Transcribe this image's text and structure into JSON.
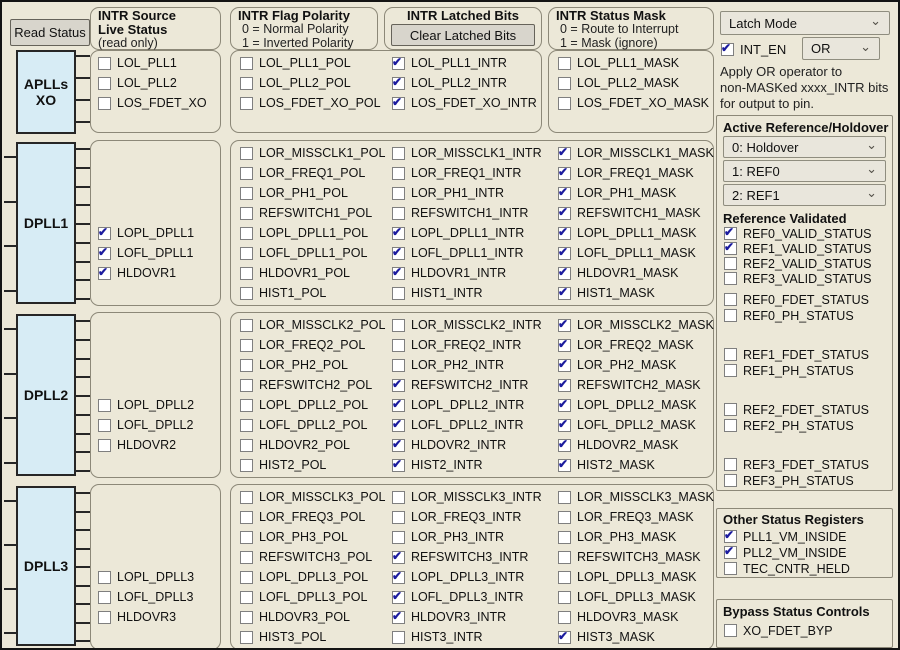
{
  "theme": {
    "background": "#ece8d8",
    "block_fill": "#d7ecf5",
    "check_color": "#1b1b9e",
    "box_border": "#8c8878",
    "button_fill": "#d8d5cc"
  },
  "read_status_button": {
    "label": "Read Status"
  },
  "headers": {
    "source": {
      "line1": "INTR Source",
      "line2": "Live Status",
      "line3": "(read only)"
    },
    "polarity": {
      "title": "INTR Flag Polarity",
      "line1": "0 = Normal Polarity",
      "line2": "1 = Inverted Polarity"
    },
    "latched": {
      "title": "INTR Latched Bits",
      "button_label": "Clear Latched Bits"
    },
    "mask": {
      "title": "INTR Status Mask",
      "line1": "0 = Route to Interrupt",
      "line2": "1 = Mask (ignore)"
    }
  },
  "bands": [
    {
      "block_label": "APLLs\nXO",
      "live": [
        {
          "label": "LOL_PLL1",
          "checked": false
        },
        {
          "label": "LOL_PLL2",
          "checked": false
        },
        {
          "label": "LOS_FDET_XO",
          "checked": false
        }
      ],
      "pol": [
        {
          "label": "LOL_PLL1_POL",
          "checked": false
        },
        {
          "label": "LOL_PLL2_POL",
          "checked": false
        },
        {
          "label": "LOS_FDET_XO_POL",
          "checked": false
        }
      ],
      "intr": [
        {
          "label": "LOL_PLL1_INTR",
          "checked": true
        },
        {
          "label": "LOL_PLL2_INTR",
          "checked": true
        },
        {
          "label": "LOS_FDET_XO_INTR",
          "checked": true
        }
      ],
      "mask": [
        {
          "label": "LOL_PLL1_MASK",
          "checked": false
        },
        {
          "label": "LOL_PLL2_MASK",
          "checked": false
        },
        {
          "label": "LOS_FDET_XO_MASK",
          "checked": false
        }
      ]
    },
    {
      "block_label": "DPLL1",
      "live": [
        {
          "label": "LOPL_DPLL1",
          "checked": true
        },
        {
          "label": "LOFL_DPLL1",
          "checked": true
        },
        {
          "label": "HLDOVR1",
          "checked": true
        }
      ],
      "pol": [
        {
          "label": "LOR_MISSCLK1_POL",
          "checked": false
        },
        {
          "label": "LOR_FREQ1_POL",
          "checked": false
        },
        {
          "label": "LOR_PH1_POL",
          "checked": false
        },
        {
          "label": "REFSWITCH1_POL",
          "checked": false
        },
        {
          "label": "LOPL_DPLL1_POL",
          "checked": false
        },
        {
          "label": "LOFL_DPLL1_POL",
          "checked": false
        },
        {
          "label": "HLDOVR1_POL",
          "checked": false
        },
        {
          "label": "HIST1_POL",
          "checked": false
        }
      ],
      "intr": [
        {
          "label": "LOR_MISSCLK1_INTR",
          "checked": false
        },
        {
          "label": "LOR_FREQ1_INTR",
          "checked": false
        },
        {
          "label": "LOR_PH1_INTR",
          "checked": false
        },
        {
          "label": "REFSWITCH1_INTR",
          "checked": false
        },
        {
          "label": "LOPL_DPLL1_INTR",
          "checked": true
        },
        {
          "label": "LOFL_DPLL1_INTR",
          "checked": true
        },
        {
          "label": "HLDOVR1_INTR",
          "checked": true
        },
        {
          "label": "HIST1_INTR",
          "checked": false
        }
      ],
      "mask": [
        {
          "label": "LOR_MISSCLK1_MASK",
          "checked": true
        },
        {
          "label": "LOR_FREQ1_MASK",
          "checked": true
        },
        {
          "label": "LOR_PH1_MASK",
          "checked": true
        },
        {
          "label": "REFSWITCH1_MASK",
          "checked": true
        },
        {
          "label": "LOPL_DPLL1_MASK",
          "checked": true
        },
        {
          "label": "LOFL_DPLL1_MASK",
          "checked": true
        },
        {
          "label": "HLDOVR1_MASK",
          "checked": true
        },
        {
          "label": "HIST1_MASK",
          "checked": true
        }
      ]
    },
    {
      "block_label": "DPLL2",
      "live": [
        {
          "label": "LOPL_DPLL2",
          "checked": false
        },
        {
          "label": "LOFL_DPLL2",
          "checked": false
        },
        {
          "label": "HLDOVR2",
          "checked": false
        }
      ],
      "pol": [
        {
          "label": "LOR_MISSCLK2_POL",
          "checked": false
        },
        {
          "label": "LOR_FREQ2_POL",
          "checked": false
        },
        {
          "label": "LOR_PH2_POL",
          "checked": false
        },
        {
          "label": "REFSWITCH2_POL",
          "checked": false
        },
        {
          "label": "LOPL_DPLL2_POL",
          "checked": false
        },
        {
          "label": "LOFL_DPLL2_POL",
          "checked": false
        },
        {
          "label": "HLDOVR2_POL",
          "checked": false
        },
        {
          "label": "HIST2_POL",
          "checked": false
        }
      ],
      "intr": [
        {
          "label": "LOR_MISSCLK2_INTR",
          "checked": false
        },
        {
          "label": "LOR_FREQ2_INTR",
          "checked": false
        },
        {
          "label": "LOR_PH2_INTR",
          "checked": false
        },
        {
          "label": "REFSWITCH2_INTR",
          "checked": true
        },
        {
          "label": "LOPL_DPLL2_INTR",
          "checked": true
        },
        {
          "label": "LOFL_DPLL2_INTR",
          "checked": true
        },
        {
          "label": "HLDOVR2_INTR",
          "checked": true
        },
        {
          "label": "HIST2_INTR",
          "checked": true
        }
      ],
      "mask": [
        {
          "label": "LOR_MISSCLK2_MASK",
          "checked": true
        },
        {
          "label": "LOR_FREQ2_MASK",
          "checked": true
        },
        {
          "label": "LOR_PH2_MASK",
          "checked": true
        },
        {
          "label": "REFSWITCH2_MASK",
          "checked": true
        },
        {
          "label": "LOPL_DPLL2_MASK",
          "checked": true
        },
        {
          "label": "LOFL_DPLL2_MASK",
          "checked": true
        },
        {
          "label": "HLDOVR2_MASK",
          "checked": true
        },
        {
          "label": "HIST2_MASK",
          "checked": true
        }
      ]
    },
    {
      "block_label": "DPLL3",
      "live": [
        {
          "label": "LOPL_DPLL3",
          "checked": false
        },
        {
          "label": "LOFL_DPLL3",
          "checked": false
        },
        {
          "label": "HLDOVR3",
          "checked": false
        }
      ],
      "pol": [
        {
          "label": "LOR_MISSCLK3_POL",
          "checked": false
        },
        {
          "label": "LOR_FREQ3_POL",
          "checked": false
        },
        {
          "label": "LOR_PH3_POL",
          "checked": false
        },
        {
          "label": "REFSWITCH3_POL",
          "checked": false
        },
        {
          "label": "LOPL_DPLL3_POL",
          "checked": false
        },
        {
          "label": "LOFL_DPLL3_POL",
          "checked": false
        },
        {
          "label": "HLDOVR3_POL",
          "checked": false
        },
        {
          "label": "HIST3_POL",
          "checked": false
        }
      ],
      "intr": [
        {
          "label": "LOR_MISSCLK3_INTR",
          "checked": false
        },
        {
          "label": "LOR_FREQ3_INTR",
          "checked": false
        },
        {
          "label": "LOR_PH3_INTR",
          "checked": false
        },
        {
          "label": "REFSWITCH3_INTR",
          "checked": true
        },
        {
          "label": "LOPL_DPLL3_INTR",
          "checked": true
        },
        {
          "label": "LOFL_DPLL3_INTR",
          "checked": true
        },
        {
          "label": "HLDOVR3_INTR",
          "checked": true
        },
        {
          "label": "HIST3_INTR",
          "checked": false
        }
      ],
      "mask": [
        {
          "label": "LOR_MISSCLK3_MASK",
          "checked": false
        },
        {
          "label": "LOR_FREQ3_MASK",
          "checked": false
        },
        {
          "label": "LOR_PH3_MASK",
          "checked": false
        },
        {
          "label": "REFSWITCH3_MASK",
          "checked": false
        },
        {
          "label": "LOPL_DPLL3_MASK",
          "checked": false
        },
        {
          "label": "LOFL_DPLL3_MASK",
          "checked": false
        },
        {
          "label": "HLDOVR3_MASK",
          "checked": false
        },
        {
          "label": "HIST3_MASK",
          "checked": true
        }
      ]
    }
  ],
  "right": {
    "latch_mode_label": "Latch Mode",
    "int_en": {
      "label": "INT_EN",
      "checked": true
    },
    "or_label": "OR",
    "note_lines": [
      "Apply OR operator to",
      "non-MASKed xxxx_INTR bits",
      "for output to pin."
    ],
    "active_reference": {
      "title": "Active Reference/Holdover",
      "selects": [
        "0: Holdover",
        "1: REF0",
        "2: REF1"
      ],
      "validated_title": "Reference Validated",
      "validated": [
        {
          "label": "REF0_VALID_STATUS",
          "checked": true
        },
        {
          "label": "REF1_VALID_STATUS",
          "checked": true
        },
        {
          "label": "REF2_VALID_STATUS",
          "checked": false
        },
        {
          "label": "REF3_VALID_STATUS",
          "checked": false
        }
      ],
      "status_groups": [
        [
          {
            "label": "REF0_FDET_STATUS",
            "checked": false
          },
          {
            "label": "REF0_PH_STATUS",
            "checked": false
          }
        ],
        [
          {
            "label": "REF1_FDET_STATUS",
            "checked": false
          },
          {
            "label": "REF1_PH_STATUS",
            "checked": false
          }
        ],
        [
          {
            "label": "REF2_FDET_STATUS",
            "checked": false
          },
          {
            "label": "REF2_PH_STATUS",
            "checked": false
          }
        ],
        [
          {
            "label": "REF3_FDET_STATUS",
            "checked": false
          },
          {
            "label": "REF3_PH_STATUS",
            "checked": false
          }
        ]
      ]
    },
    "other_status": {
      "title": "Other Status Registers",
      "items": [
        {
          "label": "PLL1_VM_INSIDE",
          "checked": true
        },
        {
          "label": "PLL2_VM_INSIDE",
          "checked": true
        },
        {
          "label": "TEC_CNTR_HELD",
          "checked": false
        }
      ]
    },
    "bypass": {
      "title": "Bypass Status Controls",
      "items": [
        {
          "label": "XO_FDET_BYP",
          "checked": false
        }
      ]
    }
  }
}
